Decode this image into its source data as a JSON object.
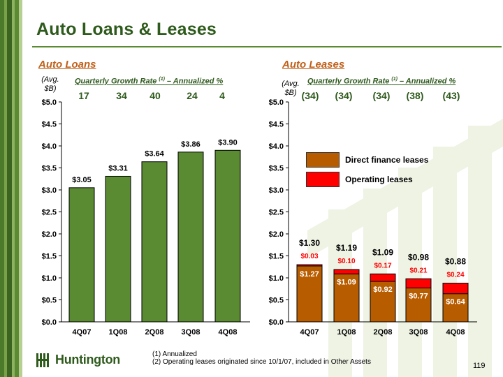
{
  "title": "Auto Loans & Leases",
  "colors": {
    "dark_green": "#2e5a1c",
    "loan_bar": "#5a8a32",
    "direct_finance": "#b85c00",
    "operating": "#ff0000",
    "section_orange": "#c0601a"
  },
  "loans": {
    "section_title": "Auto Loans",
    "avg_label": [
      "(Avg.",
      "$B)"
    ],
    "growth_title": "Quarterly Growth Rate",
    "growth_superscript": "(1)",
    "growth_suffix": " – Annualized %",
    "growth_values": [
      "17",
      "34",
      "40",
      "24",
      "4"
    ]
  },
  "leases": {
    "section_title": "Auto Leases",
    "avg_label": [
      "(Avg.",
      "$B)"
    ],
    "growth_title": "Quarterly Growth Rate",
    "growth_superscript": "(1)",
    "growth_suffix": " – Annualized  %",
    "growth_values": [
      "(34)",
      "(34)",
      "(34)",
      "(38)",
      "(43)"
    ],
    "legend": [
      {
        "label": "Direct finance leases",
        "color": "#b85c00"
      },
      {
        "label": "Operating leases",
        "color": "#ff0000"
      }
    ]
  },
  "chart_data": [
    {
      "type": "bar",
      "categories": [
        "4Q07",
        "1Q08",
        "2Q08",
        "3Q08",
        "4Q08"
      ],
      "values": [
        3.05,
        3.31,
        3.64,
        3.86,
        3.9
      ],
      "data_labels": [
        "$3.05",
        "$3.31",
        "$3.64",
        "$3.86",
        "$3.90"
      ],
      "ylim": [
        0,
        5.0
      ],
      "yticks": [
        "$0.0",
        "$0.5",
        "$1.0",
        "$1.5",
        "$2.0",
        "$2.5",
        "$3.0",
        "$3.5",
        "$4.0",
        "$4.5",
        "$5.0"
      ],
      "grid": false
    },
    {
      "type": "bar",
      "stacked": true,
      "categories": [
        "4Q07",
        "1Q08",
        "2Q08",
        "3Q08",
        "4Q08"
      ],
      "series": [
        {
          "name": "Direct finance leases",
          "values": [
            1.27,
            1.09,
            0.92,
            0.77,
            0.64
          ],
          "labels": [
            "$1.27",
            "$1.09",
            "$0.92",
            "$0.77",
            "$0.64"
          ]
        },
        {
          "name": "Operating leases",
          "values": [
            0.03,
            0.1,
            0.17,
            0.21,
            0.24
          ],
          "labels": [
            "$0.03",
            "$0.10",
            "$0.17",
            "$0.21",
            "$0.24"
          ]
        }
      ],
      "totals": [
        1.3,
        1.19,
        1.09,
        0.98,
        0.88
      ],
      "total_labels": [
        "$1.30",
        "$1.19",
        "$1.09",
        "$0.98",
        "$0.88"
      ],
      "ylim": [
        0,
        5.0
      ],
      "yticks": [
        "$0.0",
        "$0.5",
        "$1.0",
        "$1.5",
        "$2.0",
        "$2.5",
        "$3.0",
        "$3.5",
        "$4.0",
        "$4.5",
        "$5.0"
      ],
      "grid": false,
      "legend_position": "top-right"
    }
  ],
  "footnotes": [
    "(1)  Annualized",
    "(2)  Operating leases originated since 10/1/07, included in Other Assets"
  ],
  "logo_text": "Huntington",
  "page_number": "119"
}
